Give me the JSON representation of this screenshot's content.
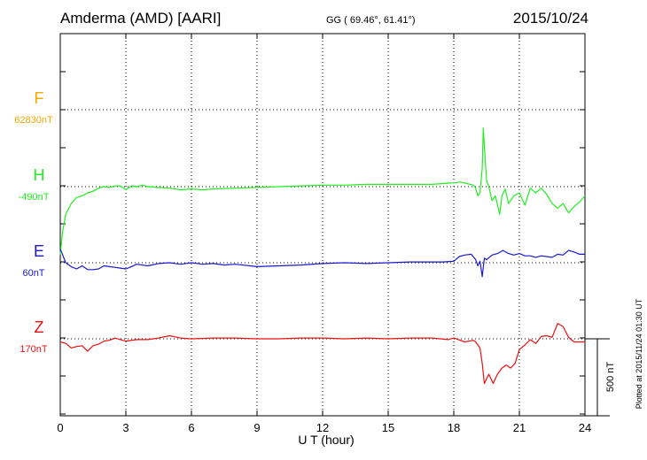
{
  "header": {
    "station": "Amderma (AMD)  [AARI]",
    "coords": "GG ( 69.46°,  61.41°)",
    "date": "2015/10/24"
  },
  "plotted_note": "Plotted at 2015/11/24 01:30 UT",
  "chart_data": {
    "type": "line",
    "xlabel": "U T (hour)",
    "xlim": [
      0,
      24
    ],
    "x_ticks": [
      0,
      3,
      6,
      9,
      12,
      15,
      18,
      21,
      24
    ],
    "x_tick_labels": [
      "0",
      "3",
      "6",
      "9",
      "12",
      "15",
      "18",
      "21",
      "24"
    ],
    "grid": true,
    "scale_bar_label": "500 nT",
    "scale_bar_nT": 500,
    "series": [
      {
        "name": "F",
        "baseline_label": "62830nT",
        "color": "#f5a800",
        "points": []
      },
      {
        "name": "H",
        "baseline_label": "-490nT",
        "color": "#22ee22",
        "points": [
          [
            0.0,
            -440
          ],
          [
            0.1,
            -300
          ],
          [
            0.25,
            -180
          ],
          [
            0.5,
            -110
          ],
          [
            0.75,
            -70
          ],
          [
            1.0,
            -60
          ],
          [
            1.25,
            -40
          ],
          [
            1.5,
            -30
          ],
          [
            1.75,
            -10
          ],
          [
            2.0,
            0
          ],
          [
            2.25,
            -5
          ],
          [
            2.5,
            5
          ],
          [
            2.75,
            5
          ],
          [
            3.0,
            -20
          ],
          [
            3.25,
            5
          ],
          [
            3.5,
            0
          ],
          [
            3.75,
            10
          ],
          [
            4.0,
            0
          ],
          [
            4.5,
            -5
          ],
          [
            5.0,
            -10
          ],
          [
            5.5,
            -20
          ],
          [
            6.0,
            -15
          ],
          [
            6.5,
            -20
          ],
          [
            7.0,
            -15
          ],
          [
            8.0,
            -10
          ],
          [
            9.0,
            -5
          ],
          [
            10.0,
            0
          ],
          [
            11.0,
            5
          ],
          [
            12.0,
            10
          ],
          [
            13.0,
            10
          ],
          [
            14.0,
            15
          ],
          [
            15.0,
            15
          ],
          [
            16.0,
            15
          ],
          [
            17.0,
            15
          ],
          [
            17.5,
            20
          ],
          [
            18.0,
            25
          ],
          [
            18.3,
            30
          ],
          [
            18.6,
            20
          ],
          [
            18.9,
            10
          ],
          [
            19.0,
            -10
          ],
          [
            19.1,
            -60
          ],
          [
            19.2,
            -40
          ],
          [
            19.3,
            120
          ],
          [
            19.35,
            380
          ],
          [
            19.4,
            260
          ],
          [
            19.5,
            40
          ],
          [
            19.6,
            0
          ],
          [
            19.75,
            -90
          ],
          [
            19.9,
            -60
          ],
          [
            20.1,
            -180
          ],
          [
            20.2,
            -60
          ],
          [
            20.35,
            -15
          ],
          [
            20.5,
            -110
          ],
          [
            20.75,
            -60
          ],
          [
            21.0,
            -40
          ],
          [
            21.25,
            -120
          ],
          [
            21.5,
            -10
          ],
          [
            21.75,
            -40
          ],
          [
            22.0,
            -10
          ],
          [
            22.25,
            -50
          ],
          [
            22.5,
            -110
          ],
          [
            22.75,
            -140
          ],
          [
            23.0,
            -110
          ],
          [
            23.25,
            -170
          ],
          [
            23.5,
            -130
          ],
          [
            23.75,
            -100
          ],
          [
            24.0,
            -60
          ]
        ]
      },
      {
        "name": "E",
        "baseline_label": "60nT",
        "color": "#1a1acc",
        "points": [
          [
            0.0,
            90
          ],
          [
            0.25,
            0
          ],
          [
            0.5,
            -25
          ],
          [
            0.75,
            -40
          ],
          [
            1.0,
            -20
          ],
          [
            1.25,
            -45
          ],
          [
            1.5,
            -45
          ],
          [
            1.75,
            -40
          ],
          [
            2.0,
            -20
          ],
          [
            2.5,
            -30
          ],
          [
            2.75,
            -35
          ],
          [
            3.0,
            -40
          ],
          [
            3.25,
            -25
          ],
          [
            3.5,
            -10
          ],
          [
            4.0,
            -20
          ],
          [
            4.5,
            -5
          ],
          [
            5.0,
            0
          ],
          [
            5.5,
            -10
          ],
          [
            6.0,
            0
          ],
          [
            6.5,
            -10
          ],
          [
            7.0,
            -5
          ],
          [
            7.5,
            -15
          ],
          [
            8.0,
            -10
          ],
          [
            9.0,
            -25
          ],
          [
            10.0,
            -20
          ],
          [
            11.0,
            -15
          ],
          [
            12.0,
            -5
          ],
          [
            13.0,
            0
          ],
          [
            14.0,
            -5
          ],
          [
            15.0,
            0
          ],
          [
            16.0,
            5
          ],
          [
            17.0,
            5
          ],
          [
            17.5,
            5
          ],
          [
            18.0,
            10
          ],
          [
            18.25,
            40
          ],
          [
            18.5,
            50
          ],
          [
            18.8,
            55
          ],
          [
            19.0,
            20
          ],
          [
            19.1,
            -20
          ],
          [
            19.2,
            10
          ],
          [
            19.3,
            -90
          ],
          [
            19.4,
            30
          ],
          [
            19.5,
            20
          ],
          [
            19.75,
            50
          ],
          [
            20.0,
            60
          ],
          [
            20.25,
            80
          ],
          [
            20.5,
            60
          ],
          [
            20.75,
            50
          ],
          [
            21.0,
            60
          ],
          [
            21.25,
            45
          ],
          [
            21.5,
            45
          ],
          [
            21.75,
            35
          ],
          [
            22.0,
            45
          ],
          [
            22.5,
            35
          ],
          [
            22.75,
            55
          ],
          [
            23.0,
            50
          ],
          [
            23.25,
            80
          ],
          [
            23.5,
            70
          ],
          [
            23.75,
            55
          ],
          [
            24.0,
            55
          ]
        ]
      },
      {
        "name": "Z",
        "baseline_label": "170nT",
        "color": "#ee1111",
        "points": [
          [
            0.0,
            -20
          ],
          [
            0.25,
            -30
          ],
          [
            0.5,
            -60
          ],
          [
            0.75,
            -50
          ],
          [
            1.0,
            -45
          ],
          [
            1.25,
            -80
          ],
          [
            1.5,
            -45
          ],
          [
            1.75,
            -35
          ],
          [
            2.0,
            -15
          ],
          [
            2.25,
            -10
          ],
          [
            2.5,
            5
          ],
          [
            2.75,
            -5
          ],
          [
            3.0,
            -15
          ],
          [
            3.5,
            -5
          ],
          [
            4.0,
            -5
          ],
          [
            4.5,
            5
          ],
          [
            5.0,
            20
          ],
          [
            5.5,
            5
          ],
          [
            6.0,
            0
          ],
          [
            7.0,
            5
          ],
          [
            8.0,
            5
          ],
          [
            9.0,
            0
          ],
          [
            10.0,
            0
          ],
          [
            11.0,
            5
          ],
          [
            12.0,
            5
          ],
          [
            13.0,
            0
          ],
          [
            14.0,
            5
          ],
          [
            15.0,
            0
          ],
          [
            16.0,
            5
          ],
          [
            17.0,
            5
          ],
          [
            17.75,
            -5
          ],
          [
            18.0,
            5
          ],
          [
            18.5,
            -20
          ],
          [
            18.9,
            -10
          ],
          [
            19.0,
            -20
          ],
          [
            19.2,
            -60
          ],
          [
            19.3,
            -160
          ],
          [
            19.4,
            -290
          ],
          [
            19.6,
            -230
          ],
          [
            19.8,
            -290
          ],
          [
            20.0,
            -230
          ],
          [
            20.2,
            -190
          ],
          [
            20.4,
            -170
          ],
          [
            20.6,
            -190
          ],
          [
            20.8,
            -160
          ],
          [
            21.0,
            -70
          ],
          [
            21.25,
            -40
          ],
          [
            21.5,
            -5
          ],
          [
            21.75,
            -30
          ],
          [
            22.0,
            15
          ],
          [
            22.25,
            20
          ],
          [
            22.5,
            10
          ],
          [
            22.75,
            100
          ],
          [
            23.0,
            80
          ],
          [
            23.25,
            10
          ],
          [
            23.5,
            -20
          ],
          [
            23.75,
            -20
          ],
          [
            24.0,
            -20
          ]
        ]
      }
    ]
  }
}
